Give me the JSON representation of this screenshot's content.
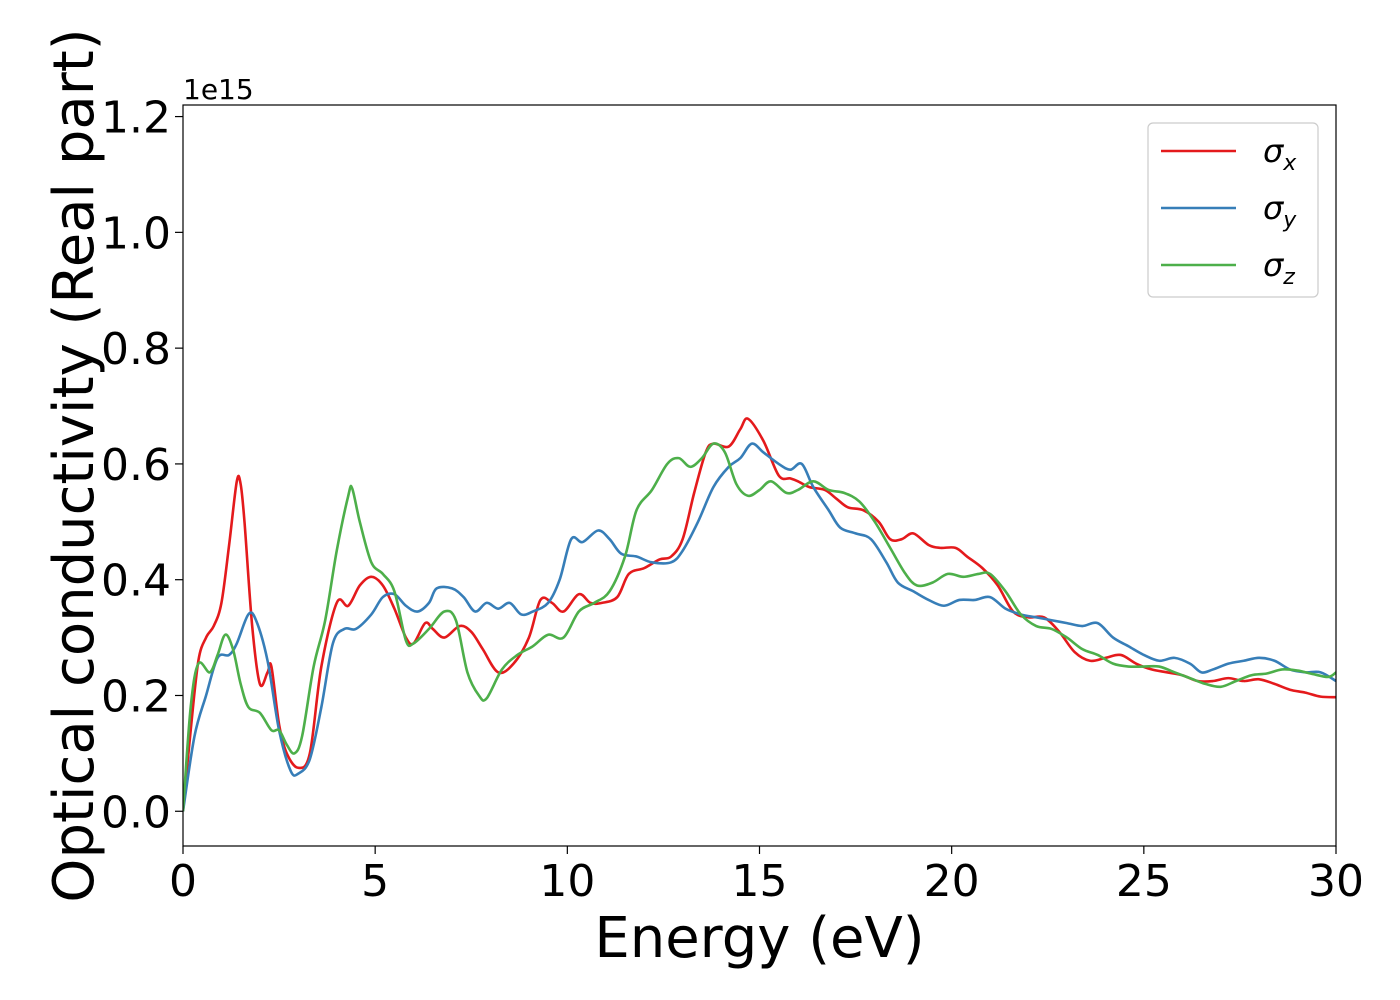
{
  "chart_data": {
    "type": "line",
    "xlabel": "Energy (eV)",
    "ylabel": "Optical conductivity (Real part)",
    "y_offset_label": "1e15",
    "xlim": [
      0,
      30
    ],
    "ylim": [
      -0.06,
      1.22
    ],
    "x_ticks": [
      0,
      5,
      10,
      15,
      20,
      25,
      30
    ],
    "x_tick_labels": [
      "0",
      "5",
      "10",
      "15",
      "20",
      "25",
      "30"
    ],
    "y_ticks": [
      0.0,
      0.2,
      0.4,
      0.6,
      0.8,
      1.0,
      1.2
    ],
    "y_tick_labels": [
      "0.0",
      "0.2",
      "0.4",
      "0.6",
      "0.8",
      "1.0",
      "1.2"
    ],
    "grid": false,
    "legend_position": "upper right",
    "series": [
      {
        "name": "σx",
        "color": "#e41a1c",
        "points": [
          [
            0,
            0
          ],
          [
            0.2,
            0.14
          ],
          [
            0.4,
            0.26
          ],
          [
            0.6,
            0.3
          ],
          [
            0.8,
            0.32
          ],
          [
            1.0,
            0.36
          ],
          [
            1.2,
            0.46
          ],
          [
            1.4,
            0.57
          ],
          [
            1.5,
            0.565
          ],
          [
            1.6,
            0.5
          ],
          [
            1.8,
            0.32
          ],
          [
            2.0,
            0.22
          ],
          [
            2.2,
            0.24
          ],
          [
            2.3,
            0.25
          ],
          [
            2.5,
            0.15
          ],
          [
            2.7,
            0.1
          ],
          [
            3.0,
            0.075
          ],
          [
            3.3,
            0.1
          ],
          [
            3.6,
            0.25
          ],
          [
            4.0,
            0.36
          ],
          [
            4.3,
            0.355
          ],
          [
            4.6,
            0.39
          ],
          [
            4.9,
            0.405
          ],
          [
            5.2,
            0.39
          ],
          [
            5.5,
            0.35
          ],
          [
            5.8,
            0.3
          ],
          [
            6.0,
            0.29
          ],
          [
            6.3,
            0.325
          ],
          [
            6.5,
            0.315
          ],
          [
            6.8,
            0.3
          ],
          [
            7.2,
            0.32
          ],
          [
            7.5,
            0.31
          ],
          [
            7.8,
            0.28
          ],
          [
            8.2,
            0.24
          ],
          [
            8.6,
            0.255
          ],
          [
            9.0,
            0.3
          ],
          [
            9.3,
            0.365
          ],
          [
            9.6,
            0.36
          ],
          [
            9.9,
            0.345
          ],
          [
            10.3,
            0.375
          ],
          [
            10.6,
            0.36
          ],
          [
            10.9,
            0.36
          ],
          [
            11.3,
            0.37
          ],
          [
            11.6,
            0.41
          ],
          [
            12.0,
            0.42
          ],
          [
            12.4,
            0.435
          ],
          [
            12.7,
            0.44
          ],
          [
            13.0,
            0.47
          ],
          [
            13.3,
            0.55
          ],
          [
            13.6,
            0.62
          ],
          [
            13.8,
            0.635
          ],
          [
            14.2,
            0.63
          ],
          [
            14.5,
            0.66
          ],
          [
            14.7,
            0.678
          ],
          [
            15.1,
            0.64
          ],
          [
            15.5,
            0.58
          ],
          [
            15.8,
            0.575
          ],
          [
            16.0,
            0.57
          ],
          [
            16.3,
            0.56
          ],
          [
            16.7,
            0.555
          ],
          [
            17.0,
            0.54
          ],
          [
            17.3,
            0.525
          ],
          [
            17.7,
            0.52
          ],
          [
            18.1,
            0.5
          ],
          [
            18.4,
            0.47
          ],
          [
            18.7,
            0.47
          ],
          [
            19.0,
            0.48
          ],
          [
            19.4,
            0.46
          ],
          [
            19.7,
            0.455
          ],
          [
            20.1,
            0.455
          ],
          [
            20.4,
            0.44
          ],
          [
            20.8,
            0.42
          ],
          [
            21.2,
            0.39
          ],
          [
            21.6,
            0.345
          ],
          [
            22.0,
            0.335
          ],
          [
            22.4,
            0.335
          ],
          [
            22.8,
            0.31
          ],
          [
            23.2,
            0.275
          ],
          [
            23.6,
            0.26
          ],
          [
            24.0,
            0.265
          ],
          [
            24.4,
            0.27
          ],
          [
            24.8,
            0.255
          ],
          [
            25.2,
            0.245
          ],
          [
            25.6,
            0.24
          ],
          [
            26.0,
            0.235
          ],
          [
            26.4,
            0.225
          ],
          [
            26.8,
            0.225
          ],
          [
            27.2,
            0.23
          ],
          [
            27.6,
            0.225
          ],
          [
            28.0,
            0.228
          ],
          [
            28.4,
            0.22
          ],
          [
            28.8,
            0.21
          ],
          [
            29.2,
            0.205
          ],
          [
            29.6,
            0.198
          ],
          [
            30.0,
            0.197
          ]
        ]
      },
      {
        "name": "σy",
        "color": "#377eb8",
        "points": [
          [
            0,
            0
          ],
          [
            0.3,
            0.13
          ],
          [
            0.6,
            0.2
          ],
          [
            0.9,
            0.265
          ],
          [
            1.2,
            0.27
          ],
          [
            1.4,
            0.29
          ],
          [
            1.7,
            0.34
          ],
          [
            1.9,
            0.33
          ],
          [
            2.2,
            0.26
          ],
          [
            2.5,
            0.14
          ],
          [
            2.8,
            0.07
          ],
          [
            3.0,
            0.065
          ],
          [
            3.3,
            0.09
          ],
          [
            3.6,
            0.18
          ],
          [
            3.9,
            0.29
          ],
          [
            4.2,
            0.315
          ],
          [
            4.5,
            0.315
          ],
          [
            4.9,
            0.34
          ],
          [
            5.2,
            0.37
          ],
          [
            5.5,
            0.375
          ],
          [
            5.8,
            0.355
          ],
          [
            6.1,
            0.345
          ],
          [
            6.4,
            0.36
          ],
          [
            6.6,
            0.385
          ],
          [
            7.0,
            0.385
          ],
          [
            7.3,
            0.37
          ],
          [
            7.6,
            0.345
          ],
          [
            7.9,
            0.36
          ],
          [
            8.2,
            0.35
          ],
          [
            8.5,
            0.36
          ],
          [
            8.8,
            0.34
          ],
          [
            9.1,
            0.345
          ],
          [
            9.5,
            0.36
          ],
          [
            9.8,
            0.4
          ],
          [
            10.1,
            0.47
          ],
          [
            10.4,
            0.465
          ],
          [
            10.8,
            0.485
          ],
          [
            11.1,
            0.47
          ],
          [
            11.4,
            0.445
          ],
          [
            11.8,
            0.44
          ],
          [
            12.2,
            0.43
          ],
          [
            12.7,
            0.43
          ],
          [
            13.0,
            0.45
          ],
          [
            13.4,
            0.5
          ],
          [
            13.8,
            0.56
          ],
          [
            14.2,
            0.595
          ],
          [
            14.5,
            0.61
          ],
          [
            14.8,
            0.635
          ],
          [
            15.1,
            0.62
          ],
          [
            15.5,
            0.6
          ],
          [
            15.8,
            0.59
          ],
          [
            16.1,
            0.6
          ],
          [
            16.4,
            0.56
          ],
          [
            16.8,
            0.52
          ],
          [
            17.1,
            0.49
          ],
          [
            17.5,
            0.48
          ],
          [
            17.9,
            0.47
          ],
          [
            18.3,
            0.43
          ],
          [
            18.6,
            0.395
          ],
          [
            19.0,
            0.38
          ],
          [
            19.4,
            0.365
          ],
          [
            19.8,
            0.355
          ],
          [
            20.2,
            0.365
          ],
          [
            20.6,
            0.365
          ],
          [
            21.0,
            0.37
          ],
          [
            21.4,
            0.35
          ],
          [
            21.8,
            0.34
          ],
          [
            22.2,
            0.335
          ],
          [
            22.6,
            0.33
          ],
          [
            23.0,
            0.325
          ],
          [
            23.4,
            0.32
          ],
          [
            23.8,
            0.325
          ],
          [
            24.2,
            0.3
          ],
          [
            24.6,
            0.285
          ],
          [
            25.0,
            0.27
          ],
          [
            25.4,
            0.26
          ],
          [
            25.8,
            0.265
          ],
          [
            26.2,
            0.255
          ],
          [
            26.5,
            0.24
          ],
          [
            26.8,
            0.245
          ],
          [
            27.2,
            0.255
          ],
          [
            27.6,
            0.26
          ],
          [
            28.0,
            0.265
          ],
          [
            28.4,
            0.26
          ],
          [
            28.8,
            0.245
          ],
          [
            29.2,
            0.24
          ],
          [
            29.6,
            0.24
          ],
          [
            30.0,
            0.225
          ]
        ]
      },
      {
        "name": "σz",
        "color": "#4daf4a",
        "points": [
          [
            0,
            0
          ],
          [
            0.2,
            0.18
          ],
          [
            0.4,
            0.255
          ],
          [
            0.7,
            0.24
          ],
          [
            0.9,
            0.27
          ],
          [
            1.1,
            0.305
          ],
          [
            1.3,
            0.28
          ],
          [
            1.5,
            0.22
          ],
          [
            1.7,
            0.18
          ],
          [
            2.0,
            0.17
          ],
          [
            2.3,
            0.14
          ],
          [
            2.5,
            0.14
          ],
          [
            2.7,
            0.115
          ],
          [
            2.9,
            0.1
          ],
          [
            3.1,
            0.13
          ],
          [
            3.4,
            0.25
          ],
          [
            3.7,
            0.33
          ],
          [
            4.0,
            0.45
          ],
          [
            4.3,
            0.545
          ],
          [
            4.4,
            0.558
          ],
          [
            4.6,
            0.5
          ],
          [
            4.9,
            0.43
          ],
          [
            5.2,
            0.41
          ],
          [
            5.5,
            0.38
          ],
          [
            5.8,
            0.295
          ],
          [
            6.0,
            0.29
          ],
          [
            6.4,
            0.315
          ],
          [
            6.8,
            0.345
          ],
          [
            7.1,
            0.33
          ],
          [
            7.4,
            0.24
          ],
          [
            7.7,
            0.2
          ],
          [
            7.9,
            0.195
          ],
          [
            8.3,
            0.245
          ],
          [
            8.7,
            0.27
          ],
          [
            9.1,
            0.285
          ],
          [
            9.5,
            0.305
          ],
          [
            9.9,
            0.3
          ],
          [
            10.3,
            0.345
          ],
          [
            10.7,
            0.36
          ],
          [
            11.1,
            0.38
          ],
          [
            11.5,
            0.44
          ],
          [
            11.8,
            0.52
          ],
          [
            12.2,
            0.555
          ],
          [
            12.6,
            0.6
          ],
          [
            12.9,
            0.61
          ],
          [
            13.2,
            0.595
          ],
          [
            13.5,
            0.61
          ],
          [
            13.8,
            0.635
          ],
          [
            14.1,
            0.62
          ],
          [
            14.4,
            0.565
          ],
          [
            14.7,
            0.545
          ],
          [
            15.0,
            0.555
          ],
          [
            15.3,
            0.57
          ],
          [
            15.7,
            0.55
          ],
          [
            16.0,
            0.555
          ],
          [
            16.4,
            0.57
          ],
          [
            16.8,
            0.555
          ],
          [
            17.2,
            0.55
          ],
          [
            17.6,
            0.535
          ],
          [
            18.0,
            0.5
          ],
          [
            18.4,
            0.455
          ],
          [
            18.8,
            0.41
          ],
          [
            19.1,
            0.39
          ],
          [
            19.5,
            0.395
          ],
          [
            19.9,
            0.41
          ],
          [
            20.3,
            0.405
          ],
          [
            20.7,
            0.41
          ],
          [
            21.0,
            0.41
          ],
          [
            21.4,
            0.38
          ],
          [
            21.8,
            0.34
          ],
          [
            22.2,
            0.32
          ],
          [
            22.6,
            0.315
          ],
          [
            23.0,
            0.3
          ],
          [
            23.4,
            0.28
          ],
          [
            23.8,
            0.27
          ],
          [
            24.2,
            0.255
          ],
          [
            24.6,
            0.25
          ],
          [
            25.0,
            0.25
          ],
          [
            25.4,
            0.25
          ],
          [
            25.8,
            0.24
          ],
          [
            26.2,
            0.23
          ],
          [
            26.6,
            0.22
          ],
          [
            27.0,
            0.215
          ],
          [
            27.4,
            0.225
          ],
          [
            27.8,
            0.235
          ],
          [
            28.2,
            0.238
          ],
          [
            28.6,
            0.245
          ],
          [
            29.0,
            0.243
          ],
          [
            29.4,
            0.237
          ],
          [
            29.8,
            0.232
          ],
          [
            30.0,
            0.24
          ]
        ]
      }
    ]
  }
}
